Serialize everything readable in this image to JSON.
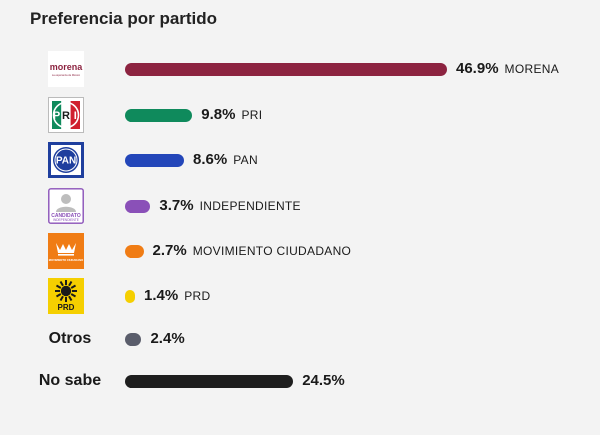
{
  "title": "Preferencia por partido",
  "logo_text": {
    "morena_main": "morena",
    "morena_sub": "La esperanza de México",
    "pri_letters": [
      "P",
      "R",
      "I"
    ],
    "pan": "PAN",
    "candidato": "CANDIDATO",
    "candidato_sub": "INDEPENDIENTE",
    "mc_sub": "MOVIMIENTO CIUDADANO",
    "prd": "PRD"
  },
  "colors": {
    "background": "#f3f3f3",
    "morena": "#8c2340",
    "pri": "#0f8a5c",
    "pan": "#2346b9",
    "independiente": "#8a50b8",
    "mc": "#f07c14",
    "prd": "#f5cf00",
    "otros": "#5a5d6b",
    "no_sabe": "#1e1e1e"
  },
  "chart_data": {
    "type": "bar",
    "orientation": "horizontal",
    "title": "Preferencia por partido",
    "categories": [
      "MORENA",
      "PRI",
      "PAN",
      "INDEPENDIENTE",
      "MOVIMIENTO CIUDADANO",
      "PRD",
      "Otros",
      "No sabe"
    ],
    "values": [
      46.9,
      9.8,
      8.6,
      3.7,
      2.7,
      1.4,
      2.4,
      24.5
    ],
    "value_labels": [
      "46.9%",
      "9.8%",
      "8.6%",
      "3.7%",
      "2.7%",
      "1.4%",
      "2.4%",
      "24.5%"
    ],
    "xlim": [
      0,
      46.9
    ],
    "grid": false,
    "legend": "none",
    "rows": [
      {
        "key": "morena",
        "label": "MORENA",
        "value": 46.9,
        "pct": "46.9%",
        "color": "#8c2340",
        "logo": "morena"
      },
      {
        "key": "pri",
        "label": "PRI",
        "value": 9.8,
        "pct": "9.8%",
        "color": "#0f8a5c",
        "logo": "pri"
      },
      {
        "key": "pan",
        "label": "PAN",
        "value": 8.6,
        "pct": "8.6%",
        "color": "#2346b9",
        "logo": "pan"
      },
      {
        "key": "independiente",
        "label": "INDEPENDIENTE",
        "value": 3.7,
        "pct": "3.7%",
        "color": "#8a50b8",
        "logo": "independiente"
      },
      {
        "key": "mc",
        "label": "MOVIMIENTO CIUDADANO",
        "value": 2.7,
        "pct": "2.7%",
        "color": "#f07c14",
        "logo": "mc"
      },
      {
        "key": "prd",
        "label": "PRD",
        "value": 1.4,
        "pct": "1.4%",
        "color": "#f5cf00",
        "logo": "prd"
      },
      {
        "key": "otros",
        "text_label": "Otros",
        "value": 2.4,
        "pct": "2.4%",
        "color": "#5a5d6b",
        "logo": "none"
      },
      {
        "key": "no_sabe",
        "text_label": "No sabe",
        "value": 24.5,
        "pct": "24.5%",
        "color": "#1e1e1e",
        "logo": "none"
      }
    ]
  }
}
